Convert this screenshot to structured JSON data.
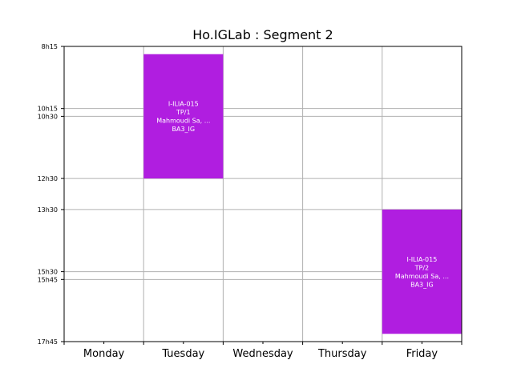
{
  "chart_data": {
    "type": "timetable",
    "title": "Ho.IGLab : Segment 2",
    "days": [
      "Monday",
      "Tuesday",
      "Wednesday",
      "Thursday",
      "Friday"
    ],
    "y_ticks": [
      "8h15",
      "10h15",
      "10h30",
      "12h30",
      "13h30",
      "15h30",
      "15h45",
      "17h45"
    ],
    "y_range": [
      "8h15",
      "17h45"
    ],
    "grid": true,
    "colors": {
      "event": "#b01ee0",
      "grid": "#b0b0b0",
      "axis": "#000000"
    },
    "events": [
      {
        "day": "Tuesday",
        "start": "8h30",
        "end": "12h30",
        "lines": [
          "I-ILIA-015",
          "TP/1",
          "Mahmoudi Sa, ...",
          "BA3_IG"
        ]
      },
      {
        "day": "Friday",
        "start": "13h30",
        "end": "17h30",
        "lines": [
          "I-ILIA-015",
          "TP/2",
          "Mahmoudi Sa, ...",
          "BA3_IG"
        ]
      }
    ]
  }
}
